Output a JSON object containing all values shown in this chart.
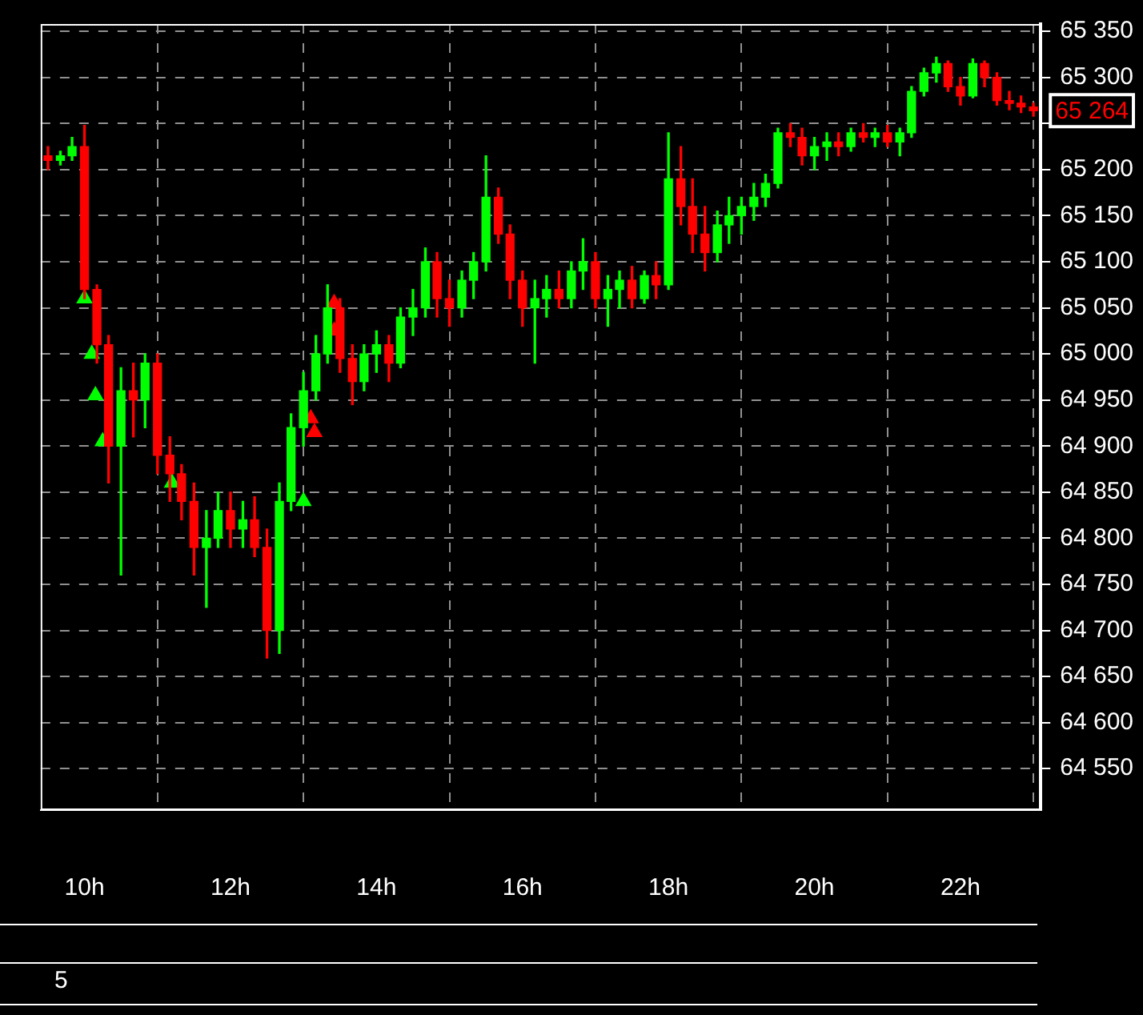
{
  "chart_data": {
    "type": "candlestick",
    "x": [
      9.5,
      9.67,
      9.83,
      10.0,
      10.17,
      10.33,
      10.5,
      10.67,
      10.83,
      11.0,
      11.17,
      11.33,
      11.5,
      11.67,
      11.83,
      12.0,
      12.17,
      12.33,
      12.5,
      12.67,
      12.83,
      13.0,
      13.17,
      13.33,
      13.5,
      13.67,
      13.83,
      14.0,
      14.17,
      14.33,
      14.5,
      14.67,
      14.83,
      15.0,
      15.17,
      15.33,
      15.5,
      15.67,
      15.83,
      16.0,
      16.17,
      16.33,
      16.5,
      16.67,
      16.83,
      17.0,
      17.17,
      17.33,
      17.5,
      17.67,
      17.83,
      18.0,
      18.17,
      18.33,
      18.5,
      18.67,
      18.83,
      19.0,
      19.17,
      19.33,
      19.5,
      19.67,
      19.83,
      20.0,
      20.17,
      20.33,
      20.5,
      20.67,
      20.83,
      21.0,
      21.17,
      21.33,
      21.5,
      21.67,
      21.83,
      22.0,
      22.17,
      22.33,
      22.5,
      22.67,
      22.83,
      23.0
    ],
    "ohlc": [
      [
        65215,
        65225,
        65200,
        65210
      ],
      [
        65210,
        65220,
        65205,
        65215
      ],
      [
        65215,
        65235,
        65210,
        65225
      ],
      [
        65225,
        65248,
        65060,
        65070
      ],
      [
        65070,
        65075,
        64990,
        65010
      ],
      [
        65010,
        65020,
        64860,
        64900
      ],
      [
        64900,
        64985,
        64760,
        64960
      ],
      [
        64960,
        64990,
        64910,
        64950
      ],
      [
        64950,
        65000,
        64920,
        64990
      ],
      [
        64990,
        65000,
        64870,
        64890
      ],
      [
        64890,
        64910,
        64840,
        64870
      ],
      [
        64870,
        64880,
        64820,
        64840
      ],
      [
        64840,
        64860,
        64760,
        64790
      ],
      [
        64790,
        64830,
        64725,
        64800
      ],
      [
        64800,
        64850,
        64790,
        64830
      ],
      [
        64830,
        64850,
        64790,
        64810
      ],
      [
        64810,
        64840,
        64790,
        64820
      ],
      [
        64820,
        64845,
        64780,
        64790
      ],
      [
        64790,
        64810,
        64670,
        64700
      ],
      [
        64700,
        64860,
        64675,
        64840
      ],
      [
        64840,
        64935,
        64830,
        64920
      ],
      [
        64920,
        64980,
        64900,
        64960
      ],
      [
        64960,
        65020,
        64950,
        65000
      ],
      [
        65000,
        65075,
        64990,
        65050
      ],
      [
        65050,
        65060,
        64980,
        64995
      ],
      [
        64995,
        65010,
        64945,
        64970
      ],
      [
        64970,
        65010,
        64960,
        65000
      ],
      [
        65000,
        65025,
        64980,
        65010
      ],
      [
        65010,
        65020,
        64970,
        64990
      ],
      [
        64990,
        65050,
        64985,
        65040
      ],
      [
        65040,
        65070,
        65020,
        65050
      ],
      [
        65050,
        65115,
        65040,
        65100
      ],
      [
        65100,
        65110,
        65040,
        65060
      ],
      [
        65060,
        65080,
        65030,
        65050
      ],
      [
        65050,
        65090,
        65040,
        65080
      ],
      [
        65080,
        65110,
        65060,
        65100
      ],
      [
        65100,
        65215,
        65090,
        65170
      ],
      [
        65170,
        65180,
        65120,
        65130
      ],
      [
        65130,
        65140,
        65060,
        65080
      ],
      [
        65080,
        65090,
        65030,
        65050
      ],
      [
        65050,
        65080,
        64990,
        65060
      ],
      [
        65060,
        65085,
        65040,
        65070
      ],
      [
        65070,
        65090,
        65050,
        65060
      ],
      [
        65060,
        65100,
        65050,
        65090
      ],
      [
        65090,
        65125,
        65070,
        65100
      ],
      [
        65100,
        65110,
        65050,
        65060
      ],
      [
        65060,
        65085,
        65030,
        65070
      ],
      [
        65070,
        65090,
        65050,
        65080
      ],
      [
        65080,
        65095,
        65050,
        65060
      ],
      [
        65060,
        65090,
        65055,
        65085
      ],
      [
        65085,
        65100,
        65060,
        65075
      ],
      [
        65075,
        65240,
        65070,
        65190
      ],
      [
        65190,
        65225,
        65140,
        65160
      ],
      [
        65160,
        65190,
        65110,
        65130
      ],
      [
        65130,
        65160,
        65090,
        65110
      ],
      [
        65110,
        65155,
        65100,
        65140
      ],
      [
        65140,
        65170,
        65120,
        65150
      ],
      [
        65150,
        65170,
        65130,
        65160
      ],
      [
        65160,
        65185,
        65145,
        65170
      ],
      [
        65170,
        65195,
        65160,
        65185
      ],
      [
        65185,
        65245,
        65180,
        65240
      ],
      [
        65240,
        65250,
        65225,
        65235
      ],
      [
        65235,
        65245,
        65205,
        65215
      ],
      [
        65215,
        65235,
        65200,
        65225
      ],
      [
        65225,
        65240,
        65210,
        65230
      ],
      [
        65230,
        65240,
        65215,
        65225
      ],
      [
        65225,
        65245,
        65220,
        65240
      ],
      [
        65240,
        65250,
        65230,
        65235
      ],
      [
        65235,
        65245,
        65225,
        65240
      ],
      [
        65240,
        65248,
        65225,
        65230
      ],
      [
        65230,
        65245,
        65215,
        65240
      ],
      [
        65240,
        65290,
        65235,
        65285
      ],
      [
        65285,
        65310,
        65280,
        65305
      ],
      [
        65305,
        65322,
        65295,
        65315
      ],
      [
        65315,
        65318,
        65285,
        65290
      ],
      [
        65290,
        65300,
        65270,
        65280
      ],
      [
        65280,
        65320,
        65278,
        65315
      ],
      [
        65315,
        65318,
        65290,
        65300
      ],
      [
        65300,
        65305,
        65270,
        65275
      ],
      [
        65275,
        65285,
        65265,
        65272
      ],
      [
        65272,
        65280,
        65262,
        65268
      ],
      [
        65268,
        65272,
        65258,
        65264
      ]
    ],
    "colors": [
      "#ff0000",
      "#00ff00",
      "#00ff00",
      "#ff0000",
      "#ff0000",
      "#ff0000",
      "#00ff00",
      "#ff0000",
      "#00ff00",
      "#ff0000",
      "#ff0000",
      "#ff0000",
      "#ff0000",
      "#00ff00",
      "#00ff00",
      "#ff0000",
      "#00ff00",
      "#ff0000",
      "#ff0000",
      "#00ff00",
      "#00ff00",
      "#00ff00",
      "#00ff00",
      "#00ff00",
      "#ff0000",
      "#ff0000",
      "#00ff00",
      "#00ff00",
      "#ff0000",
      "#00ff00",
      "#00ff00",
      "#00ff00",
      "#ff0000",
      "#ff0000",
      "#00ff00",
      "#00ff00",
      "#00ff00",
      "#ff0000",
      "#ff0000",
      "#ff0000",
      "#00ff00",
      "#00ff00",
      "#ff0000",
      "#00ff00",
      "#00ff00",
      "#ff0000",
      "#00ff00",
      "#00ff00",
      "#ff0000",
      "#00ff00",
      "#ff0000",
      "#00ff00",
      "#ff0000",
      "#ff0000",
      "#ff0000",
      "#00ff00",
      "#00ff00",
      "#00ff00",
      "#00ff00",
      "#00ff00",
      "#00ff00",
      "#ff0000",
      "#ff0000",
      "#00ff00",
      "#00ff00",
      "#ff0000",
      "#00ff00",
      "#ff0000",
      "#00ff00",
      "#ff0000",
      "#00ff00",
      "#00ff00",
      "#00ff00",
      "#00ff00",
      "#ff0000",
      "#ff0000",
      "#00ff00",
      "#ff0000",
      "#ff0000",
      "#ff0000",
      "#ff0000",
      "#ff0000"
    ],
    "series": [
      {
        "type": "scatter",
        "color": "#00ff00",
        "marker": "triangle",
        "x": [
          10.0,
          10.1,
          10.15,
          10.25,
          11.2,
          13.0
        ],
        "values": [
          65060,
          65000,
          64955,
          64905,
          64860,
          64840
        ]
      },
      {
        "type": "scatter",
        "color": "#ff0000",
        "marker": "triangle",
        "x": [
          13.1,
          13.15,
          13.42,
          13.42
        ],
        "values": [
          64930,
          64915,
          65055,
          65025
        ]
      }
    ],
    "xlim": [
      9.4,
      23.1
    ],
    "xticks": [
      {
        "value": 10,
        "label": "10h"
      },
      {
        "value": 12,
        "label": "12h"
      },
      {
        "value": 14,
        "label": "14h"
      },
      {
        "value": 16,
        "label": "16h"
      },
      {
        "value": 18,
        "label": "18h"
      },
      {
        "value": 20,
        "label": "20h"
      },
      {
        "value": 22,
        "label": "22h"
      }
    ],
    "ylim": [
      64505,
      65358
    ],
    "yticks": [
      {
        "value": 64550,
        "label": "64 550"
      },
      {
        "value": 64600,
        "label": "64 600"
      },
      {
        "value": 64650,
        "label": "64 650"
      },
      {
        "value": 64700,
        "label": "64 700"
      },
      {
        "value": 64750,
        "label": "64 750"
      },
      {
        "value": 64800,
        "label": "64 800"
      },
      {
        "value": 64850,
        "label": "64 850"
      },
      {
        "value": 64900,
        "label": "64 900"
      },
      {
        "value": 64950,
        "label": "64 950"
      },
      {
        "value": 65000,
        "label": "65 000"
      },
      {
        "value": 65050,
        "label": "65 050"
      },
      {
        "value": 65100,
        "label": "65 100"
      },
      {
        "value": 65150,
        "label": "65 150"
      },
      {
        "value": 65200,
        "label": "65 200"
      },
      {
        "value": 65250,
        "label": null
      },
      {
        "value": 65300,
        "label": "65 300"
      },
      {
        "value": 65350,
        "label": "65 350"
      }
    ],
    "grid": true,
    "annotations": [
      {
        "text": "65 264",
        "x": 23.1,
        "y": 65264
      },
      "5"
    ]
  }
}
